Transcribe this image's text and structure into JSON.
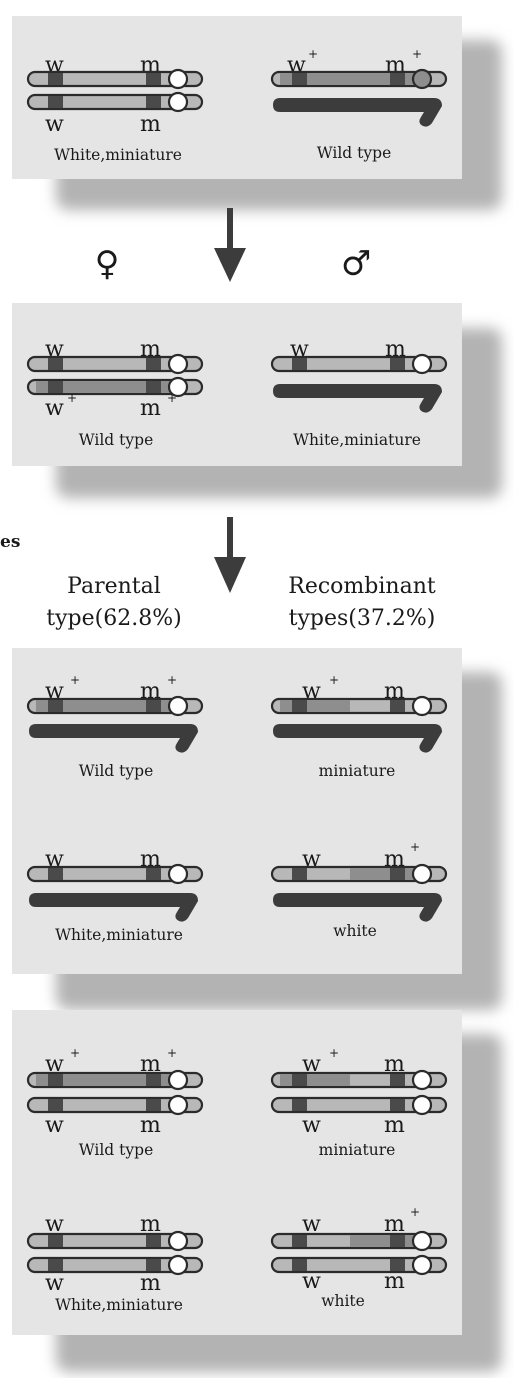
{
  "colors": {
    "panel": "#e5e5e5",
    "shadow": "#b3b3b3",
    "x_chromosome": "#b8b8b8",
    "wild_segment": "#8e8e8e",
    "band": "#4a4a4a",
    "y_chromosome": "#3c3c3c",
    "centromere": "#ffffff"
  },
  "parents": {
    "female": {
      "top_alleles": [
        "w",
        "m"
      ],
      "bottom_alleles": [
        "w",
        "m"
      ],
      "caption": "White,miniature"
    },
    "male": {
      "x_alleles": [
        "w",
        "m"
      ],
      "superscript": "+",
      "caption": "Wild type"
    }
  },
  "symbols": {
    "female": "♀",
    "male": "♂"
  },
  "f1": {
    "female": {
      "top_alleles": [
        "w",
        "m"
      ],
      "bottom_alleles": [
        "w",
        "m"
      ],
      "superscript": "+",
      "caption": "Wild type"
    },
    "male": {
      "x_alleles": [
        "w",
        "m"
      ],
      "caption": "White,miniature"
    }
  },
  "edge_fragment": "es",
  "headings": {
    "parental": [
      "Parental",
      "type(62.8%)"
    ],
    "recombinant": [
      "Recombinant",
      "types(37.2%)"
    ]
  },
  "f2_males": {
    "wild_type": {
      "alleles": [
        "w",
        "m"
      ],
      "superscript": "+",
      "caption": "Wild type"
    },
    "miniature": {
      "alleles": [
        "w",
        "m"
      ],
      "superscript": "+",
      "caption": "miniature"
    },
    "white_miniature": {
      "alleles": [
        "w",
        "m"
      ],
      "caption": "White,miniature"
    },
    "white": {
      "alleles": [
        "w",
        "m"
      ],
      "superscript": "+",
      "caption": "white"
    }
  },
  "f2_females": {
    "wild_type": {
      "top_alleles": [
        "w",
        "m"
      ],
      "bottom_alleles": [
        "w",
        "m"
      ],
      "superscript": "+",
      "caption": "Wild type"
    },
    "miniature": {
      "top_alleles": [
        "w",
        "m"
      ],
      "bottom_alleles": [
        "w",
        "m"
      ],
      "superscript": "+",
      "caption": "miniature"
    },
    "white_miniature": {
      "top_alleles": [
        "w",
        "m"
      ],
      "bottom_alleles": [
        "w",
        "m"
      ],
      "caption": "White,miniature"
    },
    "white": {
      "top_alleles": [
        "w",
        "m"
      ],
      "bottom_alleles": [
        "w",
        "m"
      ],
      "superscript": "+",
      "caption": "white"
    }
  }
}
